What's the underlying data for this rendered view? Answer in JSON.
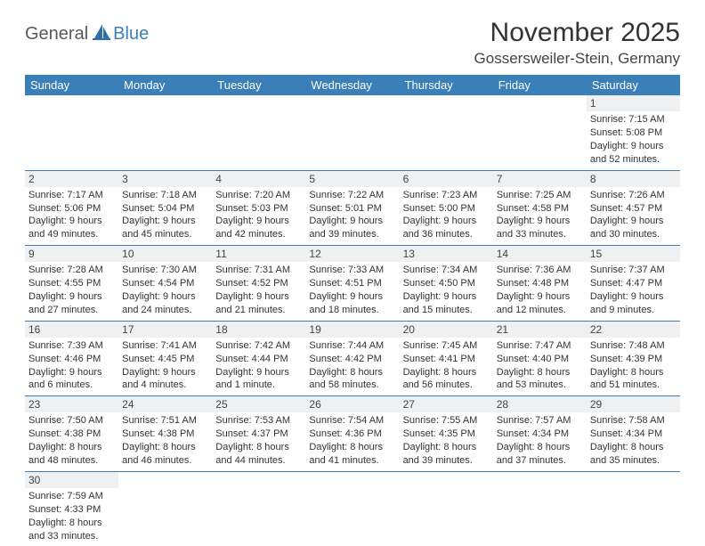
{
  "brand": {
    "part1": "General",
    "part2": "Blue"
  },
  "title": "November 2025",
  "location": "Gossersweiler-Stein, Germany",
  "colors": {
    "header_bg": "#3a7fb8",
    "header_text": "#ffffff",
    "border": "#3a7fb8",
    "daynum_bg": "#eef0f2",
    "text": "#333333",
    "background": "#ffffff"
  },
  "day_headers": [
    "Sunday",
    "Monday",
    "Tuesday",
    "Wednesday",
    "Thursday",
    "Friday",
    "Saturday"
  ],
  "weeks": [
    [
      null,
      null,
      null,
      null,
      null,
      null,
      {
        "n": "1",
        "sunrise": "Sunrise: 7:15 AM",
        "sunset": "Sunset: 5:08 PM",
        "daylight": "Daylight: 9 hours and 52 minutes."
      }
    ],
    [
      {
        "n": "2",
        "sunrise": "Sunrise: 7:17 AM",
        "sunset": "Sunset: 5:06 PM",
        "daylight": "Daylight: 9 hours and 49 minutes."
      },
      {
        "n": "3",
        "sunrise": "Sunrise: 7:18 AM",
        "sunset": "Sunset: 5:04 PM",
        "daylight": "Daylight: 9 hours and 45 minutes."
      },
      {
        "n": "4",
        "sunrise": "Sunrise: 7:20 AM",
        "sunset": "Sunset: 5:03 PM",
        "daylight": "Daylight: 9 hours and 42 minutes."
      },
      {
        "n": "5",
        "sunrise": "Sunrise: 7:22 AM",
        "sunset": "Sunset: 5:01 PM",
        "daylight": "Daylight: 9 hours and 39 minutes."
      },
      {
        "n": "6",
        "sunrise": "Sunrise: 7:23 AM",
        "sunset": "Sunset: 5:00 PM",
        "daylight": "Daylight: 9 hours and 36 minutes."
      },
      {
        "n": "7",
        "sunrise": "Sunrise: 7:25 AM",
        "sunset": "Sunset: 4:58 PM",
        "daylight": "Daylight: 9 hours and 33 minutes."
      },
      {
        "n": "8",
        "sunrise": "Sunrise: 7:26 AM",
        "sunset": "Sunset: 4:57 PM",
        "daylight": "Daylight: 9 hours and 30 minutes."
      }
    ],
    [
      {
        "n": "9",
        "sunrise": "Sunrise: 7:28 AM",
        "sunset": "Sunset: 4:55 PM",
        "daylight": "Daylight: 9 hours and 27 minutes."
      },
      {
        "n": "10",
        "sunrise": "Sunrise: 7:30 AM",
        "sunset": "Sunset: 4:54 PM",
        "daylight": "Daylight: 9 hours and 24 minutes."
      },
      {
        "n": "11",
        "sunrise": "Sunrise: 7:31 AM",
        "sunset": "Sunset: 4:52 PM",
        "daylight": "Daylight: 9 hours and 21 minutes."
      },
      {
        "n": "12",
        "sunrise": "Sunrise: 7:33 AM",
        "sunset": "Sunset: 4:51 PM",
        "daylight": "Daylight: 9 hours and 18 minutes."
      },
      {
        "n": "13",
        "sunrise": "Sunrise: 7:34 AM",
        "sunset": "Sunset: 4:50 PM",
        "daylight": "Daylight: 9 hours and 15 minutes."
      },
      {
        "n": "14",
        "sunrise": "Sunrise: 7:36 AM",
        "sunset": "Sunset: 4:48 PM",
        "daylight": "Daylight: 9 hours and 12 minutes."
      },
      {
        "n": "15",
        "sunrise": "Sunrise: 7:37 AM",
        "sunset": "Sunset: 4:47 PM",
        "daylight": "Daylight: 9 hours and 9 minutes."
      }
    ],
    [
      {
        "n": "16",
        "sunrise": "Sunrise: 7:39 AM",
        "sunset": "Sunset: 4:46 PM",
        "daylight": "Daylight: 9 hours and 6 minutes."
      },
      {
        "n": "17",
        "sunrise": "Sunrise: 7:41 AM",
        "sunset": "Sunset: 4:45 PM",
        "daylight": "Daylight: 9 hours and 4 minutes."
      },
      {
        "n": "18",
        "sunrise": "Sunrise: 7:42 AM",
        "sunset": "Sunset: 4:44 PM",
        "daylight": "Daylight: 9 hours and 1 minute."
      },
      {
        "n": "19",
        "sunrise": "Sunrise: 7:44 AM",
        "sunset": "Sunset: 4:42 PM",
        "daylight": "Daylight: 8 hours and 58 minutes."
      },
      {
        "n": "20",
        "sunrise": "Sunrise: 7:45 AM",
        "sunset": "Sunset: 4:41 PM",
        "daylight": "Daylight: 8 hours and 56 minutes."
      },
      {
        "n": "21",
        "sunrise": "Sunrise: 7:47 AM",
        "sunset": "Sunset: 4:40 PM",
        "daylight": "Daylight: 8 hours and 53 minutes."
      },
      {
        "n": "22",
        "sunrise": "Sunrise: 7:48 AM",
        "sunset": "Sunset: 4:39 PM",
        "daylight": "Daylight: 8 hours and 51 minutes."
      }
    ],
    [
      {
        "n": "23",
        "sunrise": "Sunrise: 7:50 AM",
        "sunset": "Sunset: 4:38 PM",
        "daylight": "Daylight: 8 hours and 48 minutes."
      },
      {
        "n": "24",
        "sunrise": "Sunrise: 7:51 AM",
        "sunset": "Sunset: 4:38 PM",
        "daylight": "Daylight: 8 hours and 46 minutes."
      },
      {
        "n": "25",
        "sunrise": "Sunrise: 7:53 AM",
        "sunset": "Sunset: 4:37 PM",
        "daylight": "Daylight: 8 hours and 44 minutes."
      },
      {
        "n": "26",
        "sunrise": "Sunrise: 7:54 AM",
        "sunset": "Sunset: 4:36 PM",
        "daylight": "Daylight: 8 hours and 41 minutes."
      },
      {
        "n": "27",
        "sunrise": "Sunrise: 7:55 AM",
        "sunset": "Sunset: 4:35 PM",
        "daylight": "Daylight: 8 hours and 39 minutes."
      },
      {
        "n": "28",
        "sunrise": "Sunrise: 7:57 AM",
        "sunset": "Sunset: 4:34 PM",
        "daylight": "Daylight: 8 hours and 37 minutes."
      },
      {
        "n": "29",
        "sunrise": "Sunrise: 7:58 AM",
        "sunset": "Sunset: 4:34 PM",
        "daylight": "Daylight: 8 hours and 35 minutes."
      }
    ],
    [
      {
        "n": "30",
        "sunrise": "Sunrise: 7:59 AM",
        "sunset": "Sunset: 4:33 PM",
        "daylight": "Daylight: 8 hours and 33 minutes."
      },
      null,
      null,
      null,
      null,
      null,
      null
    ]
  ]
}
